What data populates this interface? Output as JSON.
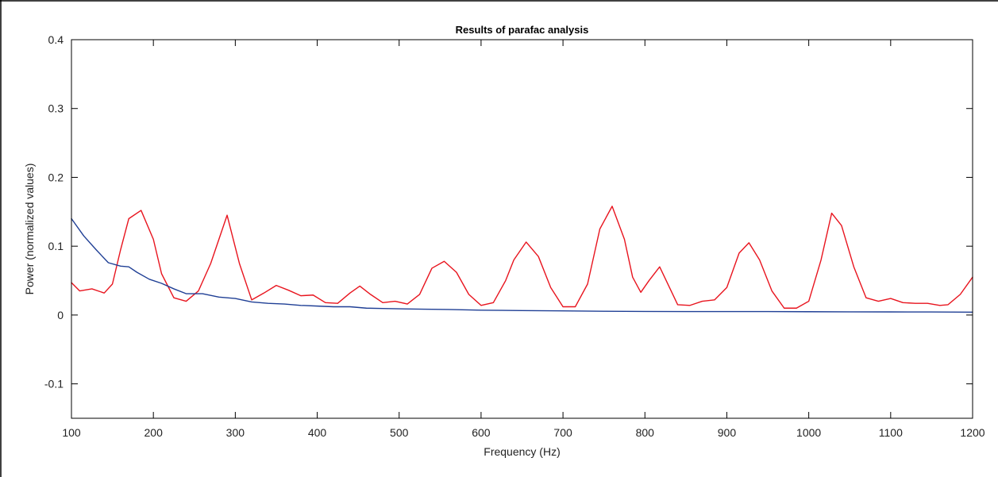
{
  "chart_data": {
    "type": "line",
    "title": "Results of parafac analysis",
    "xlabel": "Frequency (Hz)",
    "ylabel": "Power (normalized values)",
    "xlim": [
      100,
      1200
    ],
    "ylim": [
      -0.15,
      0.4
    ],
    "xticks": [
      100,
      200,
      300,
      400,
      500,
      600,
      700,
      800,
      900,
      1000,
      1100,
      1200
    ],
    "yticks": [
      -0.1,
      0,
      0.1,
      0.2,
      0.3,
      0.4
    ],
    "ytick_labels": [
      "-0.1",
      "0",
      "0.1",
      "0.2",
      "0.3",
      "0.4"
    ],
    "grid": false,
    "series": [
      {
        "color": "#e8141e",
        "x": [
          100,
          110,
          125,
          140,
          150,
          160,
          170,
          185,
          200,
          210,
          225,
          240,
          255,
          270,
          290,
          305,
          320,
          335,
          350,
          365,
          380,
          395,
          410,
          425,
          440,
          452,
          465,
          480,
          495,
          510,
          525,
          540,
          555,
          570,
          585,
          600,
          615,
          630,
          640,
          655,
          670,
          685,
          700,
          715,
          730,
          745,
          760,
          775,
          785,
          795,
          805,
          818,
          830,
          840,
          855,
          870,
          885,
          900,
          915,
          927,
          940,
          955,
          970,
          985,
          1000,
          1015,
          1028,
          1040,
          1055,
          1070,
          1085,
          1100,
          1115,
          1130,
          1145,
          1160,
          1170,
          1185,
          1200
        ],
        "y": [
          0.047,
          0.035,
          0.038,
          0.032,
          0.045,
          0.095,
          0.14,
          0.152,
          0.11,
          0.06,
          0.025,
          0.02,
          0.035,
          0.075,
          0.145,
          0.075,
          0.022,
          0.032,
          0.043,
          0.036,
          0.028,
          0.029,
          0.018,
          0.017,
          0.032,
          0.042,
          0.03,
          0.018,
          0.02,
          0.016,
          0.03,
          0.068,
          0.078,
          0.062,
          0.03,
          0.014,
          0.018,
          0.05,
          0.08,
          0.106,
          0.085,
          0.04,
          0.012,
          0.012,
          0.045,
          0.125,
          0.158,
          0.11,
          0.055,
          0.033,
          0.05,
          0.07,
          0.04,
          0.015,
          0.014,
          0.02,
          0.022,
          0.04,
          0.09,
          0.105,
          0.08,
          0.035,
          0.01,
          0.01,
          0.02,
          0.08,
          0.148,
          0.13,
          0.07,
          0.025,
          0.02,
          0.024,
          0.018,
          0.017,
          0.017,
          0.014,
          0.015,
          0.03,
          0.055
        ]
      },
      {
        "color": "#1f3f95",
        "x": [
          100,
          115,
          130,
          145,
          160,
          170,
          180,
          195,
          210,
          225,
          240,
          260,
          280,
          300,
          320,
          340,
          360,
          380,
          400,
          420,
          440,
          460,
          480,
          500,
          530,
          560,
          600,
          650,
          700,
          750,
          800,
          850,
          900,
          950,
          1000,
          1050,
          1100,
          1150,
          1200
        ],
        "y": [
          0.14,
          0.115,
          0.095,
          0.076,
          0.071,
          0.07,
          0.062,
          0.052,
          0.046,
          0.038,
          0.031,
          0.031,
          0.026,
          0.024,
          0.019,
          0.017,
          0.016,
          0.014,
          0.013,
          0.012,
          0.012,
          0.01,
          0.0095,
          0.009,
          0.0085,
          0.008,
          0.007,
          0.0065,
          0.006,
          0.0055,
          0.0052,
          0.005,
          0.005,
          0.005,
          0.0048,
          0.0046,
          0.0045,
          0.0044,
          0.0042
        ]
      }
    ]
  }
}
